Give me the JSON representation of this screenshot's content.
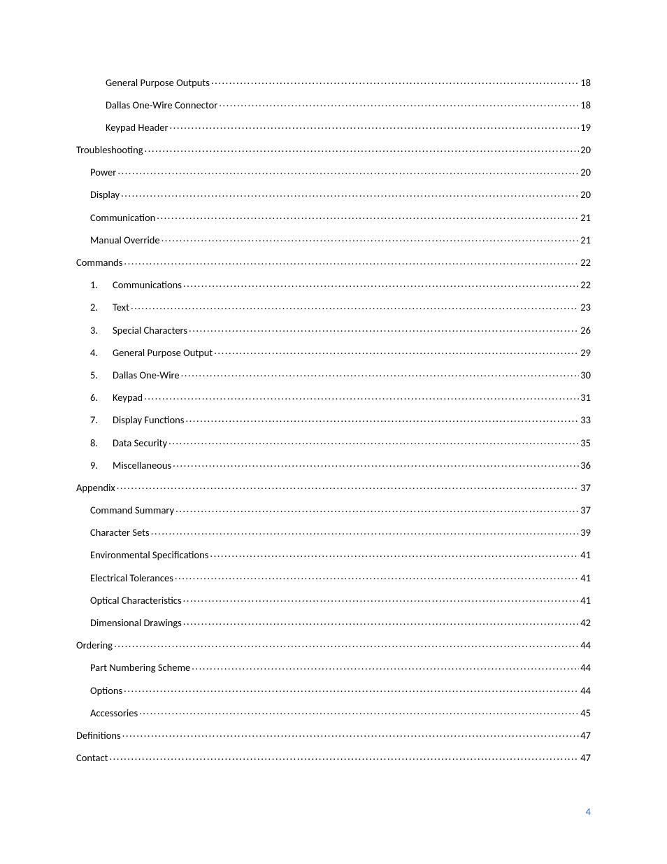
{
  "page_number": "4",
  "page_number_color": "#4472c4",
  "toc": [
    {
      "indent": "indent-2",
      "num": "",
      "title": "General Purpose Outputs",
      "page": "18"
    },
    {
      "indent": "indent-2",
      "num": "",
      "title": "Dallas One-Wire Connector",
      "page": "18"
    },
    {
      "indent": "indent-2",
      "num": "",
      "title": "Keypad Header",
      "page": "19"
    },
    {
      "indent": "indent-0",
      "num": "",
      "title": "Troubleshooting",
      "page": "20"
    },
    {
      "indent": "indent-1",
      "num": "",
      "title": "Power",
      "page": "20"
    },
    {
      "indent": "indent-1",
      "num": "",
      "title": "Display",
      "page": "20"
    },
    {
      "indent": "indent-1",
      "num": "",
      "title": "Communication",
      "page": "21"
    },
    {
      "indent": "indent-1",
      "num": "",
      "title": "Manual Override",
      "page": "21"
    },
    {
      "indent": "indent-0",
      "num": "",
      "title": "Commands",
      "page": "22"
    },
    {
      "indent": "indent-num",
      "num": "1.",
      "title": "Communications",
      "page": "22"
    },
    {
      "indent": "indent-num",
      "num": "2.",
      "title": "Text",
      "page": "23"
    },
    {
      "indent": "indent-num",
      "num": "3.",
      "title": "Special Characters",
      "page": "26"
    },
    {
      "indent": "indent-num",
      "num": "4.",
      "title": "General Purpose Output",
      "page": "29"
    },
    {
      "indent": "indent-num",
      "num": "5.",
      "title": "Dallas One-Wire",
      "page": "30"
    },
    {
      "indent": "indent-num",
      "num": "6.",
      "title": "Keypad",
      "page": "31"
    },
    {
      "indent": "indent-num",
      "num": "7.",
      "title": "Display Functions",
      "page": "33"
    },
    {
      "indent": "indent-num",
      "num": "8.",
      "title": "Data Security",
      "page": "35"
    },
    {
      "indent": "indent-num",
      "num": "9.",
      "title": "Miscellaneous",
      "page": "36"
    },
    {
      "indent": "indent-0",
      "num": "",
      "title": "Appendix",
      "page": "37"
    },
    {
      "indent": "indent-1",
      "num": "",
      "title": "Command Summary",
      "page": "37"
    },
    {
      "indent": "indent-1",
      "num": "",
      "title": "Character Sets",
      "page": "39"
    },
    {
      "indent": "indent-1",
      "num": "",
      "title": "Environmental Specifications",
      "page": "41"
    },
    {
      "indent": "indent-1",
      "num": "",
      "title": "Electrical Tolerances",
      "page": "41"
    },
    {
      "indent": "indent-1",
      "num": "",
      "title": "Optical Characteristics",
      "page": "41"
    },
    {
      "indent": "indent-1",
      "num": "",
      "title": "Dimensional Drawings",
      "page": "42"
    },
    {
      "indent": "indent-0",
      "num": "",
      "title": "Ordering",
      "page": "44"
    },
    {
      "indent": "indent-1",
      "num": "",
      "title": "Part Numbering Scheme",
      "page": "44"
    },
    {
      "indent": "indent-1",
      "num": "",
      "title": "Options",
      "page": "44"
    },
    {
      "indent": "indent-1",
      "num": "",
      "title": "Accessories",
      "page": "45"
    },
    {
      "indent": "indent-0",
      "num": "",
      "title": "Definitions",
      "page": "47"
    },
    {
      "indent": "indent-0",
      "num": "",
      "title": "Contact",
      "page": "47"
    }
  ]
}
